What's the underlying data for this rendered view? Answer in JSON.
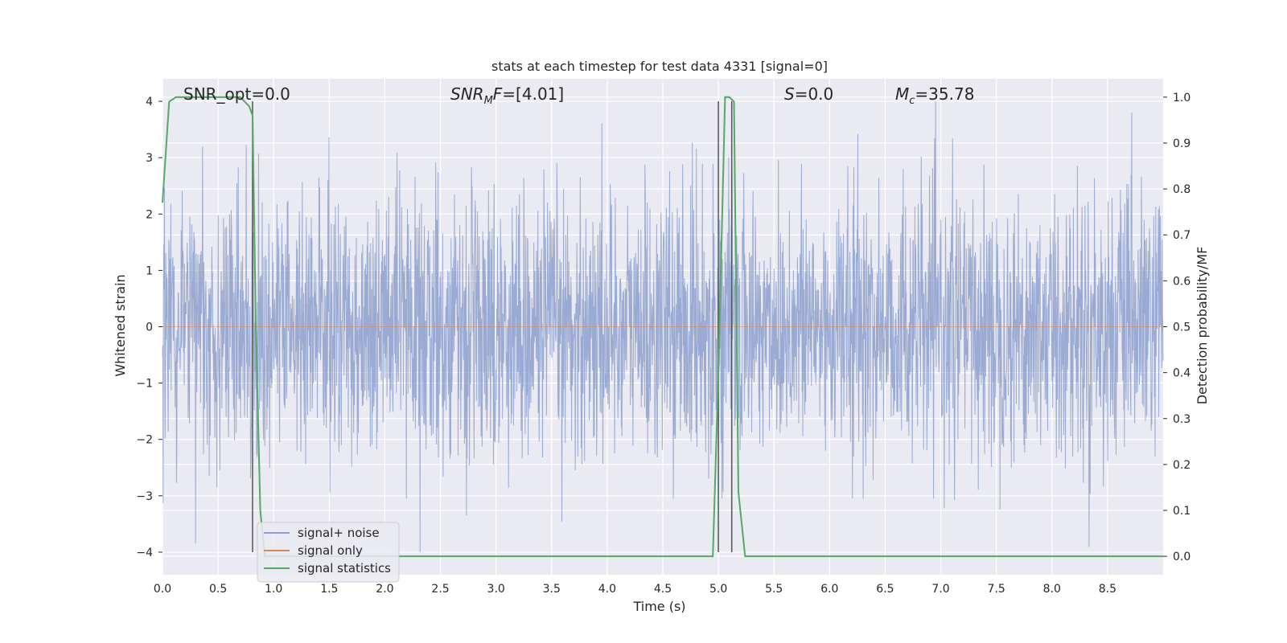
{
  "chart_data": {
    "type": "line",
    "title": "stats at each timestep for test data 4331 [signal=0]",
    "xlabel": "Time (s)",
    "ylabel_left": "Whitened strain",
    "ylabel_right": "Detection probability/MF",
    "xlim": [
      0.0,
      9.0
    ],
    "ylim_left": [
      -4.4,
      4.4
    ],
    "ylim_right": [
      -0.04,
      1.04
    ],
    "x_ticks": [
      0.0,
      0.5,
      1.0,
      1.5,
      2.0,
      2.5,
      3.0,
      3.5,
      4.0,
      4.5,
      5.0,
      5.5,
      6.0,
      6.5,
      7.0,
      7.5,
      8.0,
      8.5
    ],
    "x_tick_labels": [
      "0.0",
      "0.5",
      "1.0",
      "1.5",
      "2.0",
      "2.5",
      "3.0",
      "3.5",
      "4.0",
      "4.5",
      "5.0",
      "5.5",
      "6.0",
      "6.5",
      "7.0",
      "7.5",
      "8.0",
      "8.5"
    ],
    "y_left_ticks": [
      4,
      3,
      2,
      1,
      0,
      -1,
      -2,
      -3,
      -4
    ],
    "y_left_tick_labels": [
      "4",
      "3",
      "2",
      "1",
      "0",
      "−1",
      "−2",
      "−3",
      "−4"
    ],
    "y_right_ticks": [
      1.0,
      0.9,
      0.8,
      0.7,
      0.6,
      0.5,
      0.4,
      0.3,
      0.2,
      0.1,
      0.0
    ],
    "y_right_tick_labels": [
      "1.0",
      "0.9",
      "0.8",
      "0.7",
      "0.6",
      "0.5",
      "0.4",
      "0.3",
      "0.2",
      "0.1",
      "0.0"
    ],
    "grid": true,
    "legend_position": "lower-left",
    "annotations": {
      "snr_opt": "SNR_opt=0.0",
      "snr_mf_sym": "SNR",
      "snr_mf_sub": "M",
      "snr_mf_tail": "F",
      "snr_mf_value": "=[4.01]",
      "s_sym": "S",
      "s_value": "=0.0",
      "mc_sym": "M",
      "mc_sub": "c",
      "mc_value": "=35.78"
    },
    "vertical_lines_x": [
      0.81,
      5.0,
      5.12
    ],
    "series": [
      {
        "name": "signal+ noise",
        "color": "#8c9fcd",
        "axis": "left",
        "noise_std": 1.0,
        "x_range": [
          0.0,
          9.0
        ]
      },
      {
        "name": "signal only",
        "color": "#dd8452",
        "axis": "left",
        "values": "zero"
      },
      {
        "name": "signal statistics",
        "color": "#55a868",
        "axis": "right",
        "x": [
          0.0,
          0.06,
          0.12,
          0.25,
          0.5,
          0.7,
          0.78,
          0.81,
          0.84,
          0.88,
          0.92,
          4.95,
          5.0,
          5.06,
          5.1,
          5.14,
          5.18,
          5.24,
          5.3,
          9.0
        ],
        "y": [
          0.77,
          0.99,
          1.0,
          1.0,
          1.0,
          1.0,
          0.98,
          0.96,
          0.5,
          0.1,
          0.0,
          0.0,
          0.4,
          1.0,
          1.0,
          0.99,
          0.14,
          0.0,
          0.0,
          0.0
        ]
      }
    ]
  }
}
